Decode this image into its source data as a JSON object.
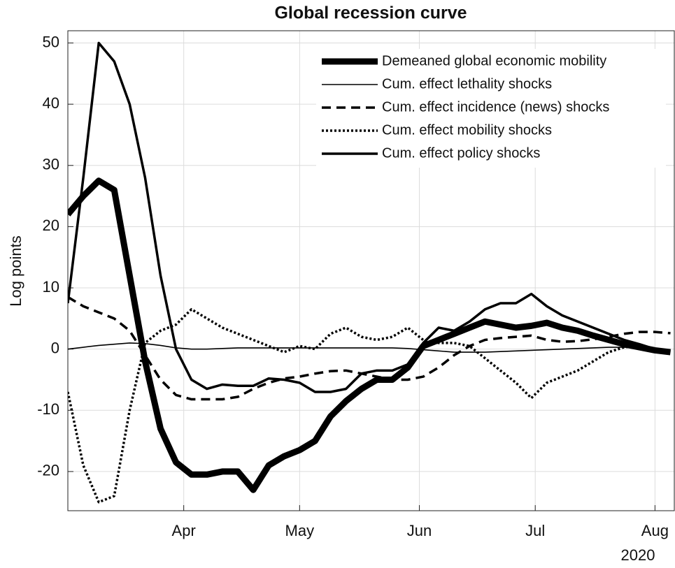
{
  "chart_data": {
    "type": "line",
    "title": "Global recession curve",
    "ylabel": "Log points",
    "year_label": "2020",
    "x": [
      62,
      66,
      70,
      74,
      78,
      82,
      86,
      90,
      94,
      98,
      102,
      106,
      110,
      114,
      118,
      122,
      126,
      130,
      134,
      138,
      142,
      146,
      150,
      154,
      158,
      162,
      166,
      170,
      174,
      178,
      182,
      186,
      190,
      194,
      198,
      202,
      206,
      210,
      214,
      218
    ],
    "xlim": [
      62,
      219
    ],
    "xticks": [
      {
        "value": 92,
        "label": "Apr"
      },
      {
        "value": 122,
        "label": "May"
      },
      {
        "value": 153,
        "label": "Jun"
      },
      {
        "value": 183,
        "label": "Jul"
      },
      {
        "value": 214,
        "label": "Aug"
      }
    ],
    "ylim": [
      -26.4,
      52
    ],
    "yticks": [
      -20,
      -10,
      0,
      10,
      20,
      30,
      40,
      50
    ],
    "grid": true,
    "legend": "top-right",
    "series": [
      {
        "name": "Demeaned global economic mobility",
        "color": "#000000",
        "width": 9,
        "dash": "none",
        "values": [
          22,
          25,
          27.5,
          26,
          12,
          -2,
          -13,
          -18.5,
          -20.5,
          -20.5,
          -20,
          -20,
          -23,
          -19,
          -17.5,
          -16.5,
          -15,
          -11,
          -8.5,
          -6.5,
          -5,
          -5,
          -3,
          0.5,
          1.5,
          2.5,
          3.5,
          4.5,
          4,
          3.5,
          3.8,
          4.3,
          3.5,
          3,
          2.2,
          1.5,
          0.8,
          0.3,
          -0.2,
          -0.5
        ]
      },
      {
        "name": "Cum. effect lethality shocks",
        "color": "#000000",
        "width": 1.6,
        "dash": "none",
        "values": [
          0,
          0.3,
          0.6,
          0.8,
          1,
          0.9,
          0.6,
          0.2,
          0,
          0,
          0.1,
          0.2,
          0.2,
          0.2,
          0.2,
          0.2,
          0.2,
          0.2,
          0.2,
          0.2,
          0.2,
          0.2,
          0.1,
          -0.1,
          -0.3,
          -0.5,
          -0.5,
          -0.5,
          -0.4,
          -0.3,
          -0.2,
          -0.1,
          0,
          0.1,
          0.2,
          0.3,
          0.3,
          0.2,
          0,
          -0.3
        ]
      },
      {
        "name": "Cum. effect incidence (news) shocks",
        "color": "#000000",
        "width": 3.5,
        "dash": "13,8",
        "values": [
          8.5,
          7,
          6,
          5,
          3,
          -1,
          -5,
          -7.5,
          -8.2,
          -8.2,
          -8.2,
          -7.8,
          -6.5,
          -5.5,
          -4.8,
          -4.5,
          -4,
          -3.6,
          -3.5,
          -4,
          -4.5,
          -5,
          -5,
          -4.5,
          -3,
          -1,
          0.5,
          1.5,
          1.8,
          2,
          2.2,
          1.5,
          1.2,
          1.3,
          1.6,
          2,
          2.5,
          2.8,
          2.8,
          2.6
        ]
      },
      {
        "name": "Cum. effect mobility shocks",
        "color": "#000000",
        "width": 3.5,
        "dash": "3,3",
        "values": [
          -7,
          -19,
          -25,
          -24,
          -10,
          1,
          3,
          4,
          6.5,
          5,
          3.5,
          2.5,
          1.5,
          0.5,
          -0.5,
          0.5,
          0,
          2.5,
          3.5,
          2,
          1.5,
          2,
          3.5,
          1.5,
          1,
          1,
          0.5,
          -1.5,
          -3.5,
          -5.5,
          -8,
          -5.5,
          -4.5,
          -3.5,
          -2,
          -0.5,
          0.3,
          0.5,
          0,
          -0.5
        ]
      },
      {
        "name": "Cum. effect policy shocks",
        "color": "#000000",
        "width": 3.5,
        "dash": "none",
        "values": [
          7.5,
          28,
          50,
          47,
          40,
          28,
          12,
          0,
          -5,
          -6.5,
          -5.8,
          -6,
          -6,
          -4.8,
          -5,
          -5.5,
          -7,
          -7,
          -6.5,
          -4,
          -3.5,
          -3.5,
          -2.5,
          1,
          3.5,
          3,
          4.5,
          6.5,
          7.5,
          7.5,
          9,
          7,
          5.5,
          4.5,
          3.5,
          2.5,
          1.5,
          0.8,
          0,
          -0.5
        ]
      }
    ]
  }
}
